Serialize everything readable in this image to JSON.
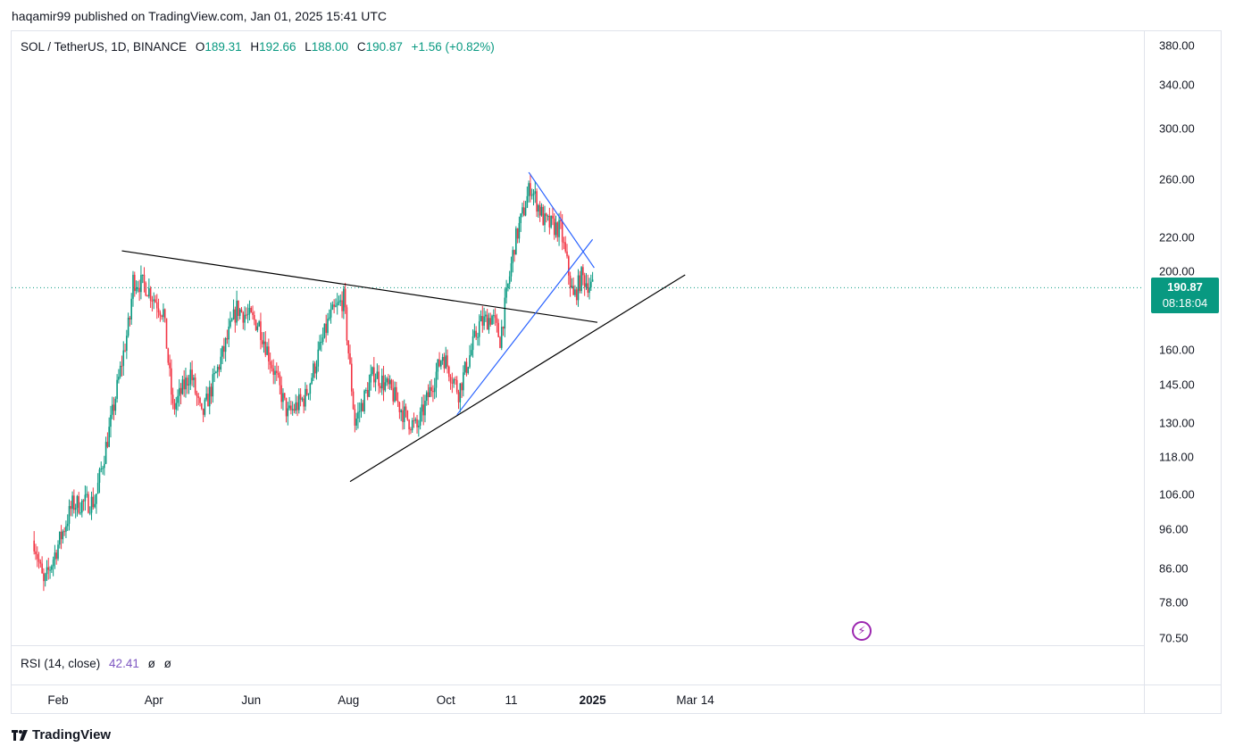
{
  "publisher_line": "haqamir99 published on TradingView.com, Jan 01, 2025 15:41 UTC",
  "legend": {
    "symbol": "SOL / TetherUS, 1D, BINANCE",
    "open_label": "O",
    "open": "189.31",
    "high_label": "H",
    "high": "192.66",
    "low_label": "L",
    "low": "188.00",
    "close_label": "C",
    "close": "190.87",
    "change": "+1.56 (+0.82%)"
  },
  "rsi": {
    "label": "RSI (14, close)",
    "value": "42.41",
    "ph1": "ø",
    "ph2": "ø"
  },
  "current_price": {
    "price": "190.87",
    "countdown": "08:18:04"
  },
  "brand": "TradingView",
  "colors": {
    "up": "#089981",
    "down": "#f23645",
    "trendline": "#000000",
    "channel": "#2962ff",
    "rsi": "#7e57c2"
  },
  "chart_data": {
    "type": "candlestick",
    "symbol": "SOL / TetherUS",
    "interval": "1D",
    "exchange": "BINANCE",
    "y_scale": "log",
    "y_ticks": [
      "380.00",
      "340.00",
      "300.00",
      "260.00",
      "220.00",
      "200.00",
      "160.00",
      "145.00",
      "130.00",
      "118.00",
      "106.00",
      "96.00",
      "86.00",
      "78.00",
      "70.50"
    ],
    "x_ticks": [
      {
        "label": "Feb",
        "date": "2024-02-01"
      },
      {
        "label": "Apr",
        "date": "2024-04-01"
      },
      {
        "label": "Jun",
        "date": "2024-06-01"
      },
      {
        "label": "Aug",
        "date": "2024-08-01"
      },
      {
        "label": "Oct",
        "date": "2024-10-01"
      },
      {
        "label": "11",
        "date": "2024-11-11"
      },
      {
        "label": "2025",
        "date": "2025-01-01",
        "bold": true
      },
      {
        "label": "Mar",
        "date": "2025-03-01"
      },
      {
        "label": "14",
        "date": "2025-03-14"
      }
    ],
    "anchors": [
      {
        "date": "2024-01-17",
        "close": 93
      },
      {
        "date": "2024-01-23",
        "close": 82
      },
      {
        "date": "2024-02-10",
        "close": 103
      },
      {
        "date": "2024-02-24",
        "close": 104
      },
      {
        "date": "2024-03-05",
        "close": 130
      },
      {
        "date": "2024-03-17",
        "close": 175
      },
      {
        "date": "2024-03-19",
        "close": 195
      },
      {
        "date": "2024-03-27",
        "close": 192
      },
      {
        "date": "2024-04-07",
        "close": 178
      },
      {
        "date": "2024-04-13",
        "close": 135
      },
      {
        "date": "2024-04-24",
        "close": 150
      },
      {
        "date": "2024-05-01",
        "close": 132
      },
      {
        "date": "2024-05-15",
        "close": 160
      },
      {
        "date": "2024-05-23",
        "close": 180
      },
      {
        "date": "2024-06-06",
        "close": 172
      },
      {
        "date": "2024-06-24",
        "close": 133
      },
      {
        "date": "2024-07-05",
        "close": 140
      },
      {
        "date": "2024-07-20",
        "close": 175
      },
      {
        "date": "2024-07-29",
        "close": 185
      },
      {
        "date": "2024-08-05",
        "close": 130
      },
      {
        "date": "2024-08-17",
        "close": 150
      },
      {
        "date": "2024-08-28",
        "close": 142
      },
      {
        "date": "2024-09-06",
        "close": 132
      },
      {
        "date": "2024-09-13",
        "close": 128
      },
      {
        "date": "2024-09-29",
        "close": 158
      },
      {
        "date": "2024-10-09",
        "close": 142
      },
      {
        "date": "2024-10-22",
        "close": 172
      },
      {
        "date": "2024-10-30",
        "close": 176
      },
      {
        "date": "2024-11-04",
        "close": 165
      },
      {
        "date": "2024-11-13",
        "close": 216
      },
      {
        "date": "2024-11-23",
        "close": 255
      },
      {
        "date": "2024-12-02",
        "close": 230
      },
      {
        "date": "2024-12-12",
        "close": 225
      },
      {
        "date": "2024-12-20",
        "close": 185
      },
      {
        "date": "2024-12-25",
        "close": 197
      },
      {
        "date": "2025-01-01",
        "close": 190.87
      }
    ],
    "drawings": [
      {
        "name": "upper-trendline",
        "color": "#000000",
        "from": {
          "date": "2024-03-12",
          "price": 212
        },
        "to": {
          "date": "2025-01-04",
          "price": 173
        }
      },
      {
        "name": "lower-trendline",
        "color": "#000000",
        "from": {
          "date": "2024-08-02",
          "price": 110
        },
        "to": {
          "date": "2025-02-28",
          "price": 198
        }
      },
      {
        "name": "channel-upper",
        "color": "#2962ff",
        "from": {
          "date": "2024-11-22",
          "price": 265
        },
        "to": {
          "date": "2025-01-02",
          "price": 202
        }
      },
      {
        "name": "channel-lower",
        "color": "#2962ff",
        "from": {
          "date": "2024-10-08",
          "price": 133
        },
        "to": {
          "date": "2025-01-01",
          "price": 219
        }
      }
    ],
    "current_price_line": 190.87
  }
}
